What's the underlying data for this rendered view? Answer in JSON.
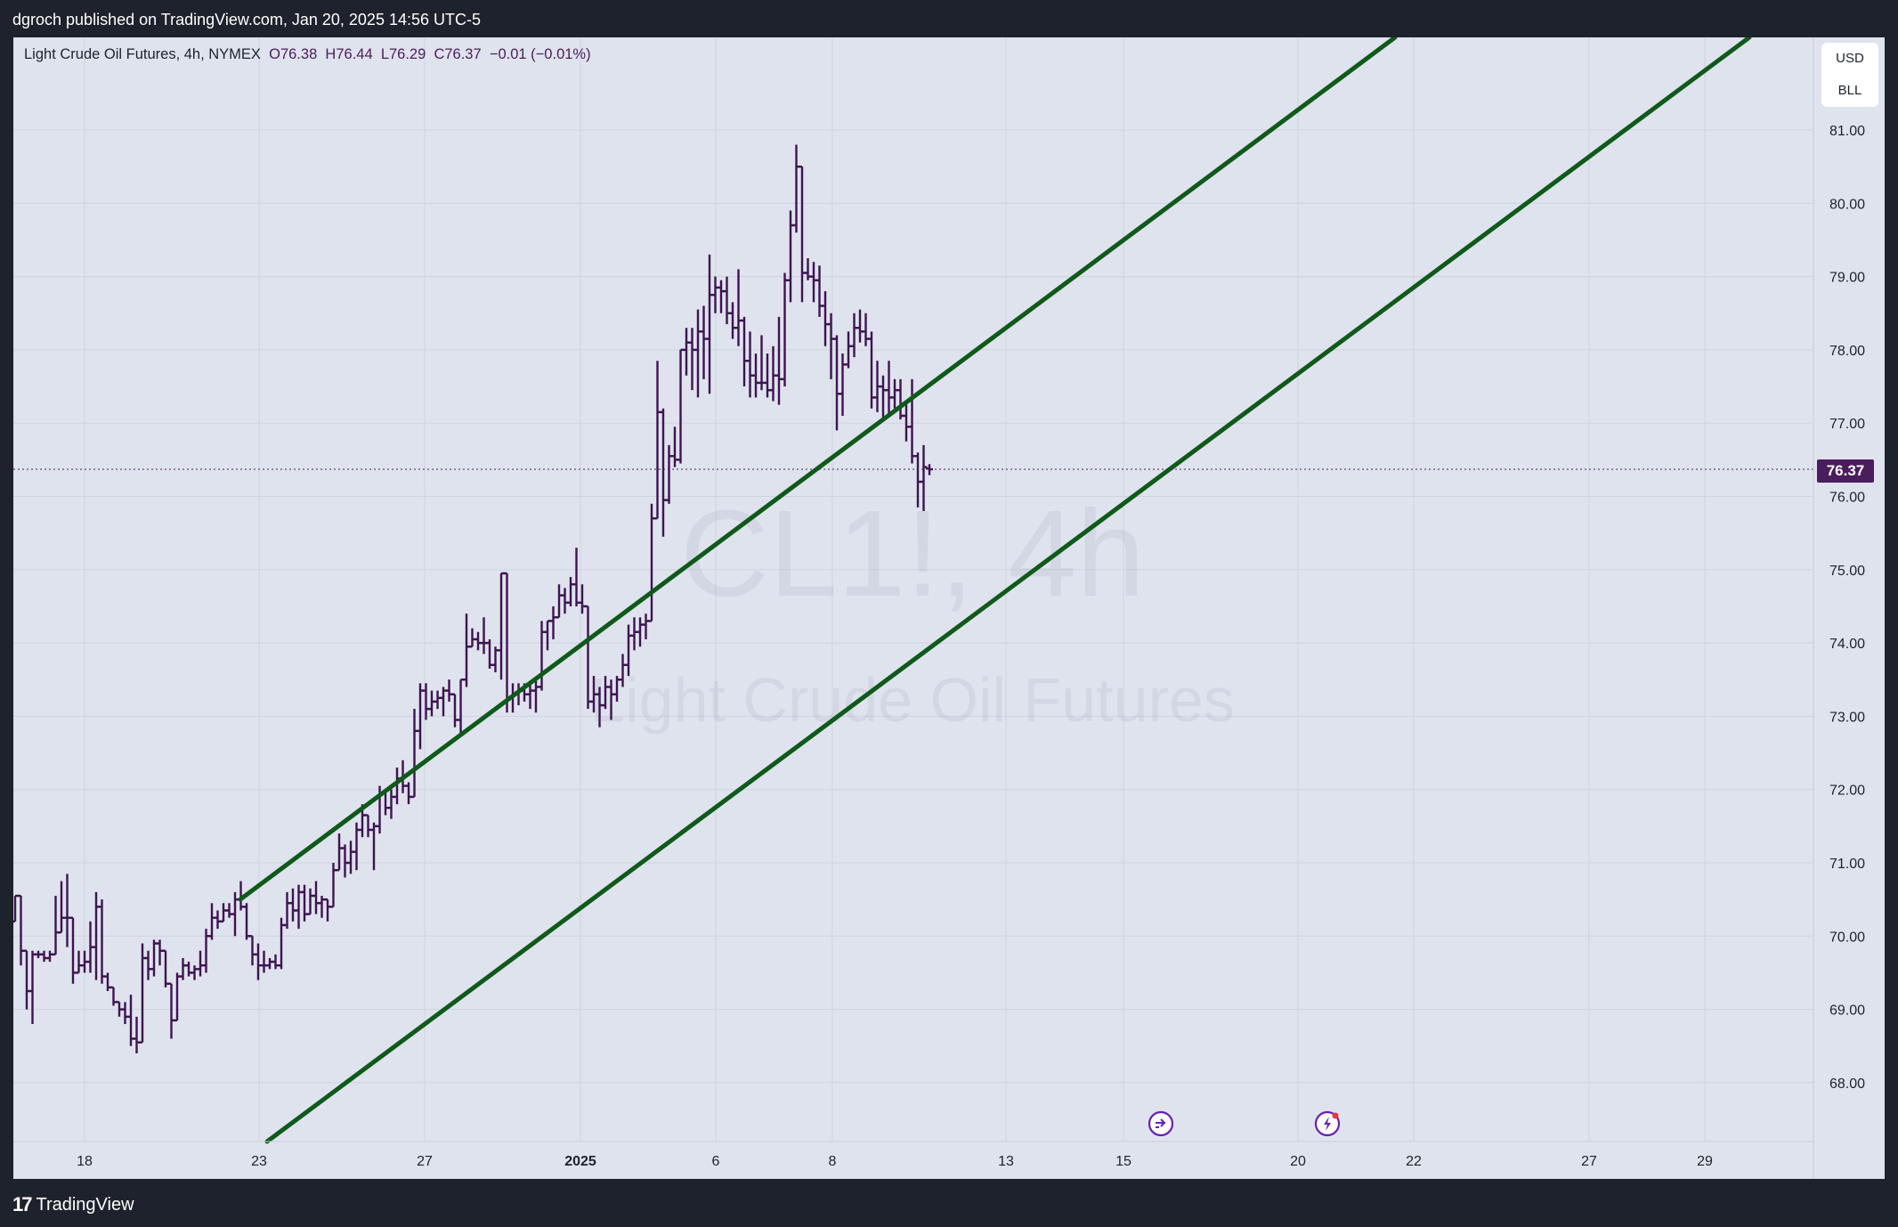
{
  "header": {
    "published": "dgroch published on TradingView.com, Jan 20, 2025 14:56 UTC-5"
  },
  "legend": {
    "name": "Light Crude Oil Futures, 4h, NYMEX",
    "open": "O76.38",
    "high": "H76.44",
    "low": "L76.29",
    "close": "C76.37",
    "change": "−0.01 (−0.01%)"
  },
  "watermark": {
    "symbol": "CL1!, 4h",
    "name": "Light Crude Oil Futures"
  },
  "currency": {
    "currency": "USD",
    "unit": "BLL"
  },
  "last_price": "76.37",
  "footer": {
    "brand": "TradingView",
    "logo_glyph": "17"
  },
  "colors": {
    "background": "#dfe3ee",
    "bars": "#3d1450",
    "channel": "#0f5a1a",
    "price_tag": "#4a1d5c"
  },
  "chart_data": {
    "type": "ohlc",
    "timeframe": "4h",
    "x_tick_labels": [
      "18",
      "23",
      "27",
      "2025",
      "6",
      "8",
      "13",
      "15",
      "20",
      "22",
      "27",
      "29"
    ],
    "y_tick_labels": [
      "68.00",
      "69.00",
      "70.00",
      "71.00",
      "72.00",
      "73.00",
      "74.00",
      "75.00",
      "76.00",
      "77.00",
      "78.00",
      "79.00",
      "80.00",
      "81.00"
    ],
    "ylim": [
      67.2,
      82.2
    ],
    "last_close": 76.37,
    "trend_channel": {
      "upper": [
        [
          19.5,
          70.5
        ],
        [
          36.6,
          83.0
        ]
      ],
      "lower": [
        [
          19.5,
          67.2
        ],
        [
          39.7,
          83.0
        ]
      ]
    },
    "bars_ohlc": [
      [
        70.2,
        70.55,
        70.2,
        70.55
      ],
      [
        70.55,
        70.55,
        69.6,
        69.8
      ],
      [
        69.8,
        69.8,
        69.0,
        69.25
      ],
      [
        69.25,
        69.8,
        68.8,
        69.75
      ],
      [
        69.75,
        69.8,
        69.7,
        69.75
      ],
      [
        69.75,
        69.8,
        69.65,
        69.7
      ],
      [
        69.7,
        69.8,
        69.65,
        69.75
      ],
      [
        69.75,
        70.55,
        69.75,
        70.05
      ],
      [
        70.05,
        70.75,
        70.05,
        70.25
      ],
      [
        70.25,
        70.85,
        69.85,
        70.25
      ],
      [
        70.25,
        70.25,
        69.35,
        69.5
      ],
      [
        69.5,
        69.8,
        69.5,
        69.6
      ],
      [
        69.6,
        69.8,
        69.5,
        69.65
      ],
      [
        69.65,
        70.2,
        69.5,
        69.85
      ],
      [
        69.85,
        70.6,
        69.4,
        70.4
      ],
      [
        70.4,
        70.5,
        69.35,
        69.45
      ],
      [
        69.45,
        69.5,
        69.25,
        69.3
      ],
      [
        69.3,
        69.3,
        69.05,
        69.1
      ],
      [
        69.1,
        69.1,
        68.9,
        69.0
      ],
      [
        69.0,
        69.1,
        68.8,
        68.9
      ],
      [
        68.9,
        69.2,
        68.5,
        68.6
      ],
      [
        68.6,
        68.9,
        68.4,
        68.55
      ],
      [
        68.55,
        69.9,
        68.55,
        69.7
      ],
      [
        69.7,
        69.8,
        69.4,
        69.55
      ],
      [
        69.55,
        69.95,
        69.45,
        69.9
      ],
      [
        69.9,
        69.95,
        69.6,
        69.8
      ],
      [
        69.8,
        69.8,
        69.3,
        69.35
      ],
      [
        69.35,
        69.35,
        68.6,
        68.85
      ],
      [
        68.85,
        69.5,
        68.85,
        69.45
      ],
      [
        69.45,
        69.7,
        69.4,
        69.6
      ],
      [
        69.6,
        69.65,
        69.45,
        69.5
      ],
      [
        69.5,
        69.6,
        69.4,
        69.55
      ],
      [
        69.55,
        69.8,
        69.45,
        69.6
      ],
      [
        69.6,
        70.1,
        69.5,
        70.0
      ],
      [
        70.0,
        70.45,
        69.95,
        70.25
      ],
      [
        70.25,
        70.35,
        70.1,
        70.2
      ],
      [
        70.2,
        70.45,
        70.2,
        70.35
      ],
      [
        70.35,
        70.45,
        70.25,
        70.3
      ],
      [
        70.3,
        70.6,
        70.0,
        70.5
      ],
      [
        70.5,
        70.75,
        70.35,
        70.4
      ],
      [
        70.4,
        70.45,
        69.95,
        70.0
      ],
      [
        70.0,
        70.0,
        69.6,
        69.75
      ],
      [
        69.75,
        69.9,
        69.4,
        69.6
      ],
      [
        69.6,
        69.8,
        69.5,
        69.6
      ],
      [
        69.6,
        69.7,
        69.55,
        69.65
      ],
      [
        69.65,
        69.75,
        69.55,
        69.6
      ],
      [
        69.6,
        70.25,
        69.55,
        70.15
      ],
      [
        70.15,
        70.6,
        70.1,
        70.45
      ],
      [
        70.45,
        70.65,
        70.2,
        70.35
      ],
      [
        70.35,
        70.7,
        70.1,
        70.6
      ],
      [
        70.6,
        70.7,
        70.2,
        70.3
      ],
      [
        70.3,
        70.65,
        70.3,
        70.55
      ],
      [
        70.55,
        70.75,
        70.3,
        70.45
      ],
      [
        70.45,
        70.55,
        70.25,
        70.5
      ],
      [
        70.5,
        70.5,
        70.2,
        70.4
      ],
      [
        70.4,
        71.0,
        70.4,
        70.9
      ],
      [
        70.9,
        71.4,
        70.9,
        71.2
      ],
      [
        71.2,
        71.25,
        70.8,
        71.0
      ],
      [
        71.0,
        71.3,
        70.85,
        71.15
      ],
      [
        71.15,
        71.55,
        70.9,
        71.45
      ],
      [
        71.45,
        71.8,
        71.35,
        71.65
      ],
      [
        71.65,
        71.65,
        71.35,
        71.45
      ],
      [
        71.45,
        71.55,
        70.9,
        71.5
      ],
      [
        71.5,
        72.05,
        71.4,
        71.95
      ],
      [
        71.95,
        71.95,
        71.65,
        71.75
      ],
      [
        71.75,
        72.0,
        71.6,
        71.9
      ],
      [
        71.9,
        72.3,
        71.8,
        72.15
      ],
      [
        72.15,
        72.4,
        71.95,
        72.05
      ],
      [
        72.05,
        72.1,
        71.8,
        71.9
      ],
      [
        71.9,
        73.1,
        71.9,
        72.8
      ],
      [
        72.8,
        73.45,
        72.55,
        73.35
      ],
      [
        73.35,
        73.45,
        72.95,
        73.1
      ],
      [
        73.1,
        73.35,
        73.0,
        73.2
      ],
      [
        73.2,
        73.35,
        73.1,
        73.25
      ],
      [
        73.25,
        73.4,
        73.0,
        73.35
      ],
      [
        73.35,
        73.5,
        73.2,
        73.3
      ],
      [
        73.3,
        73.3,
        72.85,
        72.95
      ],
      [
        72.95,
        73.5,
        72.75,
        73.5
      ],
      [
        73.5,
        74.4,
        73.4,
        73.95
      ],
      [
        73.95,
        74.2,
        73.95,
        74.05
      ],
      [
        74.05,
        74.15,
        73.9,
        74.0
      ],
      [
        74.0,
        74.35,
        73.85,
        74.0
      ],
      [
        74.0,
        74.05,
        73.65,
        73.7
      ],
      [
        73.7,
        73.95,
        73.6,
        73.9
      ],
      [
        73.9,
        74.95,
        73.5,
        74.95
      ],
      [
        74.95,
        74.95,
        73.05,
        73.25
      ],
      [
        73.25,
        73.45,
        73.05,
        73.3
      ],
      [
        73.3,
        73.45,
        73.15,
        73.35
      ],
      [
        73.35,
        73.45,
        73.2,
        73.3
      ],
      [
        73.3,
        73.45,
        73.1,
        73.35
      ],
      [
        73.35,
        73.5,
        73.05,
        73.4
      ],
      [
        73.4,
        74.3,
        73.35,
        74.15
      ],
      [
        74.15,
        74.3,
        73.9,
        74.3
      ],
      [
        74.3,
        74.5,
        74.05,
        74.35
      ],
      [
        74.35,
        74.8,
        74.35,
        74.65
      ],
      [
        74.65,
        74.75,
        74.4,
        74.55
      ],
      [
        74.55,
        74.9,
        74.5,
        74.8
      ],
      [
        74.8,
        75.3,
        74.5,
        74.55
      ],
      [
        74.55,
        74.8,
        74.4,
        74.5
      ],
      [
        74.5,
        74.5,
        73.1,
        73.2
      ],
      [
        73.2,
        73.55,
        73.05,
        73.3
      ],
      [
        73.3,
        73.4,
        72.85,
        73.15
      ],
      [
        73.15,
        73.55,
        73.1,
        73.4
      ],
      [
        73.4,
        73.5,
        72.95,
        73.3
      ],
      [
        73.3,
        73.55,
        73.2,
        73.5
      ],
      [
        73.5,
        73.85,
        73.4,
        73.7
      ],
      [
        73.7,
        74.25,
        73.55,
        74.1
      ],
      [
        74.1,
        74.35,
        73.9,
        74.15
      ],
      [
        74.15,
        74.35,
        73.95,
        74.25
      ],
      [
        74.25,
        74.4,
        74.05,
        74.3
      ],
      [
        74.3,
        75.9,
        74.3,
        75.7
      ],
      [
        75.7,
        77.85,
        75.7,
        77.15
      ],
      [
        77.15,
        77.2,
        75.45,
        75.95
      ],
      [
        75.95,
        76.7,
        75.9,
        76.55
      ],
      [
        76.55,
        76.95,
        76.4,
        76.5
      ],
      [
        76.5,
        78.0,
        76.45,
        78.0
      ],
      [
        78.0,
        78.3,
        77.65,
        78.1
      ],
      [
        78.1,
        78.3,
        77.45,
        78.0
      ],
      [
        78.0,
        78.55,
        77.35,
        78.25
      ],
      [
        78.25,
        78.6,
        77.6,
        78.15
      ],
      [
        78.15,
        79.3,
        77.4,
        78.75
      ],
      [
        78.75,
        79.0,
        78.5,
        78.85
      ],
      [
        78.85,
        78.95,
        78.5,
        78.8
      ],
      [
        78.8,
        79.0,
        78.35,
        78.5
      ],
      [
        78.5,
        78.65,
        78.15,
        78.3
      ],
      [
        78.3,
        79.1,
        78.05,
        78.4
      ],
      [
        78.4,
        78.45,
        77.5,
        77.85
      ],
      [
        77.85,
        78.25,
        77.35,
        77.65
      ],
      [
        77.65,
        77.95,
        77.35,
        77.55
      ],
      [
        77.55,
        78.2,
        77.45,
        77.55
      ],
      [
        77.55,
        77.95,
        77.35,
        77.45
      ],
      [
        77.45,
        78.05,
        77.3,
        77.65
      ],
      [
        77.65,
        78.45,
        77.25,
        77.6
      ],
      [
        77.6,
        79.05,
        77.5,
        78.95
      ],
      [
        78.95,
        79.9,
        78.65,
        79.7
      ],
      [
        79.7,
        80.8,
        79.6,
        80.5
      ],
      [
        80.5,
        80.5,
        78.65,
        79.05
      ],
      [
        79.05,
        79.25,
        78.95,
        79.0
      ],
      [
        79.0,
        79.2,
        78.65,
        78.95
      ],
      [
        78.95,
        79.15,
        78.45,
        78.6
      ],
      [
        78.6,
        78.8,
        78.05,
        78.35
      ],
      [
        78.35,
        78.5,
        77.6,
        78.15
      ],
      [
        78.15,
        78.2,
        76.9,
        77.4
      ],
      [
        77.4,
        77.95,
        77.1,
        77.8
      ],
      [
        77.8,
        78.25,
        77.75,
        78.05
      ],
      [
        78.05,
        78.5,
        77.9,
        78.3
      ],
      [
        78.3,
        78.55,
        78.1,
        78.25
      ],
      [
        78.25,
        78.5,
        78.05,
        78.15
      ],
      [
        78.15,
        78.25,
        77.2,
        77.35
      ],
      [
        77.35,
        77.85,
        77.15,
        77.5
      ],
      [
        77.5,
        77.65,
        77.05,
        77.45
      ],
      [
        77.45,
        77.85,
        77.1,
        77.35
      ],
      [
        77.35,
        77.6,
        77.2,
        77.45
      ],
      [
        77.45,
        77.6,
        77.05,
        77.1
      ],
      [
        77.1,
        77.3,
        76.75,
        76.95
      ],
      [
        76.95,
        77.6,
        76.45,
        76.55
      ],
      [
        76.55,
        76.6,
        75.85,
        76.2
      ],
      [
        76.2,
        76.7,
        75.8,
        76.4
      ],
      [
        76.38,
        76.44,
        76.29,
        76.37
      ]
    ]
  }
}
